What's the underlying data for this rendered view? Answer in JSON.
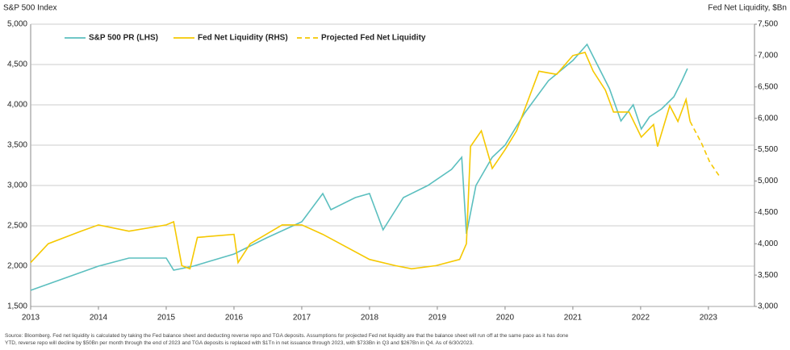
{
  "chart_data": {
    "type": "line",
    "title": "S&P 500 Index",
    "y2_title": "Fed Net Liquidity, $Bn",
    "footnote": "Source: Bloomberg. Fed net liquidity is calculated by taking the Fed balance sheet and deducting reverse repo and TGA deposits. Assumptions for projected Fed net liquidity are that the balance sheet will run off at the same pace as it has done YTD, reverse repo will decline by $50Bn per month through the end of 2023 and TGA deposits is replaced with $1Tn in net issuance through 2023, with $733Bn in Q3 and $267Bn in Q4. As of 6/30/2023.",
    "xlim": [
      2013,
      2023.68
    ],
    "xticks": [
      2013,
      2014,
      2015,
      2016,
      2017,
      2018,
      2019,
      2020,
      2021,
      2022,
      2023
    ],
    "ylim": [
      1500,
      5000
    ],
    "yticks": [
      {
        "value": 1500,
        "label": "1,500"
      },
      {
        "value": 2000,
        "label": "2,000"
      },
      {
        "value": 2500,
        "label": "2,500"
      },
      {
        "value": 3000,
        "label": "3,000"
      },
      {
        "value": 3500,
        "label": "3,500"
      },
      {
        "value": 4000,
        "label": "4,000"
      },
      {
        "value": 4500,
        "label": "4,500"
      },
      {
        "value": 5000,
        "label": "5,000"
      }
    ],
    "y2lim": [
      3000,
      7500
    ],
    "y2ticks": [
      {
        "value": 3000,
        "label": "3,000"
      },
      {
        "value": 3500,
        "label": "3,500"
      },
      {
        "value": 4000,
        "label": "4,000"
      },
      {
        "value": 4500,
        "label": "4,500"
      },
      {
        "value": 5000,
        "label": "5,000"
      },
      {
        "value": 5500,
        "label": "5,500"
      },
      {
        "value": 6000,
        "label": "6,000"
      },
      {
        "value": 6500,
        "label": "6,500"
      },
      {
        "value": 7000,
        "label": "7,000"
      },
      {
        "value": 7500,
        "label": "7,500"
      }
    ],
    "grid": true,
    "series": [
      {
        "name": "S&P 500 PR (LHS)",
        "color": "#5bbfbf",
        "dashed": false,
        "x": [
          2013.0,
          2013.5,
          2014.0,
          2014.45,
          2015.0,
          2015.11,
          2015.4,
          2016.0,
          2016.48,
          2017.0,
          2017.31,
          2017.43,
          2017.79,
          2018.0,
          2018.2,
          2018.5,
          2018.86,
          2019.21,
          2019.36,
          2019.43,
          2019.57,
          2019.81,
          2020.0,
          2020.29,
          2020.64,
          2021.0,
          2021.21,
          2021.36,
          2021.54,
          2021.71,
          2021.89,
          2022.01,
          2022.13,
          2022.31,
          2022.49,
          2022.61,
          2022.69
        ],
        "values": [
          1700,
          1850,
          2000,
          2100,
          2100,
          1950,
          2000,
          2150,
          2350,
          2550,
          2900,
          2700,
          2850,
          2900,
          2450,
          2850,
          3000,
          3200,
          3350,
          2400,
          3000,
          3350,
          3500,
          3900,
          4300,
          4550,
          4750,
          4500,
          4200,
          3800,
          4000,
          3700,
          3850,
          3950,
          4100,
          4300,
          4450
        ]
      },
      {
        "name": "Fed Net Liquidity (RHS)",
        "color": "#f5c800",
        "dashed": false,
        "axis": "y2",
        "x": [
          2013.0,
          2013.26,
          2013.74,
          2014.0,
          2014.45,
          2015.0,
          2015.11,
          2015.23,
          2015.35,
          2015.46,
          2016.0,
          2016.06,
          2016.24,
          2016.71,
          2017.0,
          2017.31,
          2018.0,
          2018.38,
          2018.62,
          2018.98,
          2019.33,
          2019.43,
          2019.49,
          2019.65,
          2019.81,
          2020.0,
          2020.17,
          2020.5,
          2020.76,
          2021.0,
          2021.18,
          2021.3,
          2021.48,
          2021.6,
          2021.83,
          2022.01,
          2022.19,
          2022.25,
          2022.43,
          2022.55,
          2022.67,
          2022.73
        ],
        "values": [
          3700,
          4000,
          4200,
          4300,
          4200,
          4300,
          4350,
          3650,
          3600,
          4100,
          4150,
          3700,
          4000,
          4300,
          4300,
          4150,
          3750,
          3650,
          3600,
          3650,
          3750,
          4000,
          5550,
          5800,
          5200,
          5500,
          5800,
          6750,
          6700,
          7000,
          7050,
          6750,
          6450,
          6100,
          6100,
          5700,
          5900,
          5550,
          6200,
          5950,
          6300,
          5950
        ]
      },
      {
        "name": "Projected Fed Net Liquidity",
        "color": "#f5c800",
        "dashed": true,
        "axis": "y2",
        "x": [
          2022.73,
          2022.9,
          2023.02,
          2023.18
        ],
        "values": [
          5950,
          5600,
          5300,
          5050
        ]
      }
    ]
  }
}
